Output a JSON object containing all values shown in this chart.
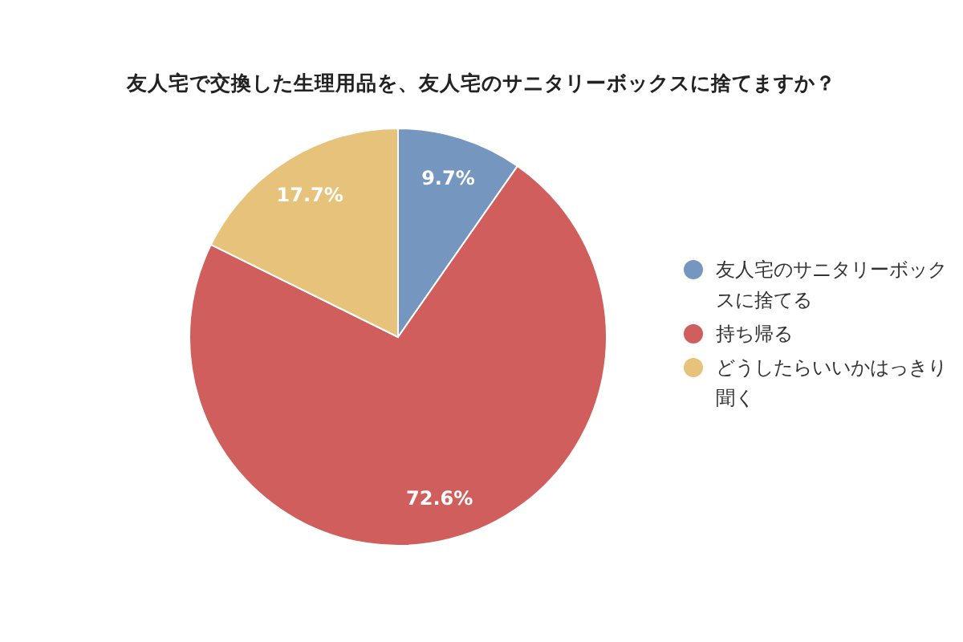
{
  "chart_data": {
    "type": "pie",
    "title": "友人宅で交換した生理用品を、友人宅のサニタリーボックスに捨てますか？",
    "categories": [
      "友人宅のサニタリーボックスに捨てる",
      "持ち帰る",
      "どうしたらいいかはっきり聞く"
    ],
    "values": [
      9.7,
      72.6,
      17.7
    ],
    "colors": [
      "#7596bf",
      "#d05e5c",
      "#e6c27a"
    ],
    "value_labels": [
      "9.7%",
      "72.6%",
      "17.7%"
    ],
    "legend": "right"
  }
}
